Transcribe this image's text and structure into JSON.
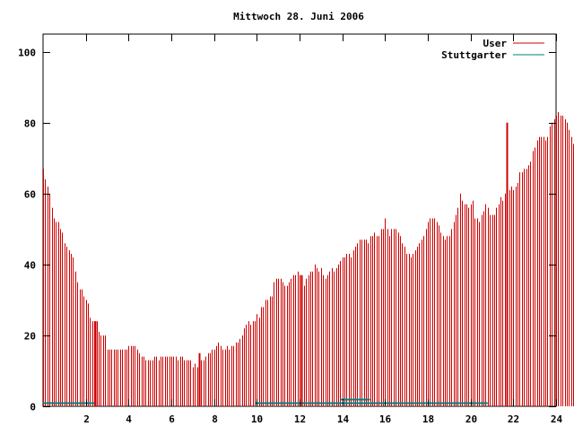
{
  "chart_data": {
    "type": "bar",
    "title": "Mittwoch 28. Juni 2006",
    "xlabel": "",
    "ylabel": "",
    "xlim": [
      0,
      24
    ],
    "ylim": [
      0,
      105
    ],
    "xticks": [
      2,
      4,
      6,
      8,
      10,
      12,
      14,
      16,
      18,
      20,
      22,
      24
    ],
    "yticks": [
      0,
      20,
      40,
      60,
      80,
      100
    ],
    "legend_position": "top-right",
    "grid": false,
    "series": [
      {
        "name": "User",
        "color": "#cc0000",
        "interval_hours": 0.1,
        "values": [
          67,
          64,
          62,
          60,
          56,
          53,
          52,
          52,
          50,
          49,
          46,
          45,
          44,
          43,
          42,
          38,
          35,
          33,
          33,
          31,
          30,
          29,
          25,
          24,
          24,
          24,
          21,
          20,
          20,
          20,
          16,
          16,
          16,
          16,
          16,
          16,
          16,
          16,
          16,
          16,
          17,
          17,
          17,
          17,
          16,
          15,
          14,
          14,
          13,
          13,
          13,
          13,
          14,
          14,
          13,
          14,
          14,
          14,
          14,
          14,
          14,
          14,
          14,
          13,
          14,
          14,
          13,
          13,
          13,
          13,
          11,
          12,
          11,
          12,
          13,
          13,
          14,
          15,
          15,
          16,
          16,
          17,
          18,
          17,
          16,
          16,
          17,
          16,
          17,
          17,
          18,
          18,
          19,
          20,
          22,
          23,
          24,
          23,
          24,
          24,
          26,
          25,
          28,
          28,
          30,
          30,
          31,
          31,
          35,
          36,
          36,
          36,
          35,
          34,
          34,
          35,
          36,
          37,
          37,
          38,
          37,
          36,
          34,
          36,
          37,
          38,
          38,
          40,
          39,
          38,
          39,
          37,
          36,
          37,
          38,
          39,
          38,
          39,
          40,
          41,
          42,
          42,
          43,
          43,
          42,
          44,
          45,
          46,
          47,
          47,
          47,
          47,
          46,
          48,
          48,
          49,
          48,
          48,
          50,
          50,
          53,
          50,
          48,
          50,
          50,
          50,
          49,
          48,
          46,
          45,
          43,
          43,
          42,
          43,
          44,
          45,
          46,
          47,
          48,
          50,
          52,
          53,
          53,
          53,
          52,
          51,
          49,
          48,
          47,
          48,
          48,
          50,
          52,
          54,
          56,
          60,
          58,
          57,
          57,
          56,
          57,
          58,
          53,
          53,
          52,
          54,
          55,
          57,
          56,
          54,
          54,
          54,
          56,
          57,
          59,
          58,
          60,
          61,
          61,
          62,
          61,
          62,
          63,
          66,
          66,
          67,
          67,
          68,
          69,
          72,
          73,
          75,
          76,
          76,
          76,
          75,
          76,
          79,
          80,
          81,
          82,
          83,
          82,
          82,
          81,
          80,
          78,
          76,
          74,
          73,
          73,
          73,
          74,
          74,
          75,
          76,
          75,
          76,
          75,
          74,
          73,
          70,
          65
        ]
      },
      {
        "name": "Stuttgarter",
        "color": "#008080",
        "segments": [
          {
            "from": 0.0,
            "to": 2.4,
            "value": 1
          },
          {
            "from": 9.9,
            "to": 20.8,
            "value": 1
          },
          {
            "from": 13.9,
            "to": 15.3,
            "value": 2
          }
        ]
      }
    ],
    "tall_markers": [
      {
        "x": 2.45,
        "value": 24
      },
      {
        "x": 7.3,
        "value": 15
      },
      {
        "x": 12.1,
        "value": 37
      },
      {
        "x": 21.7,
        "value": 80
      }
    ]
  }
}
